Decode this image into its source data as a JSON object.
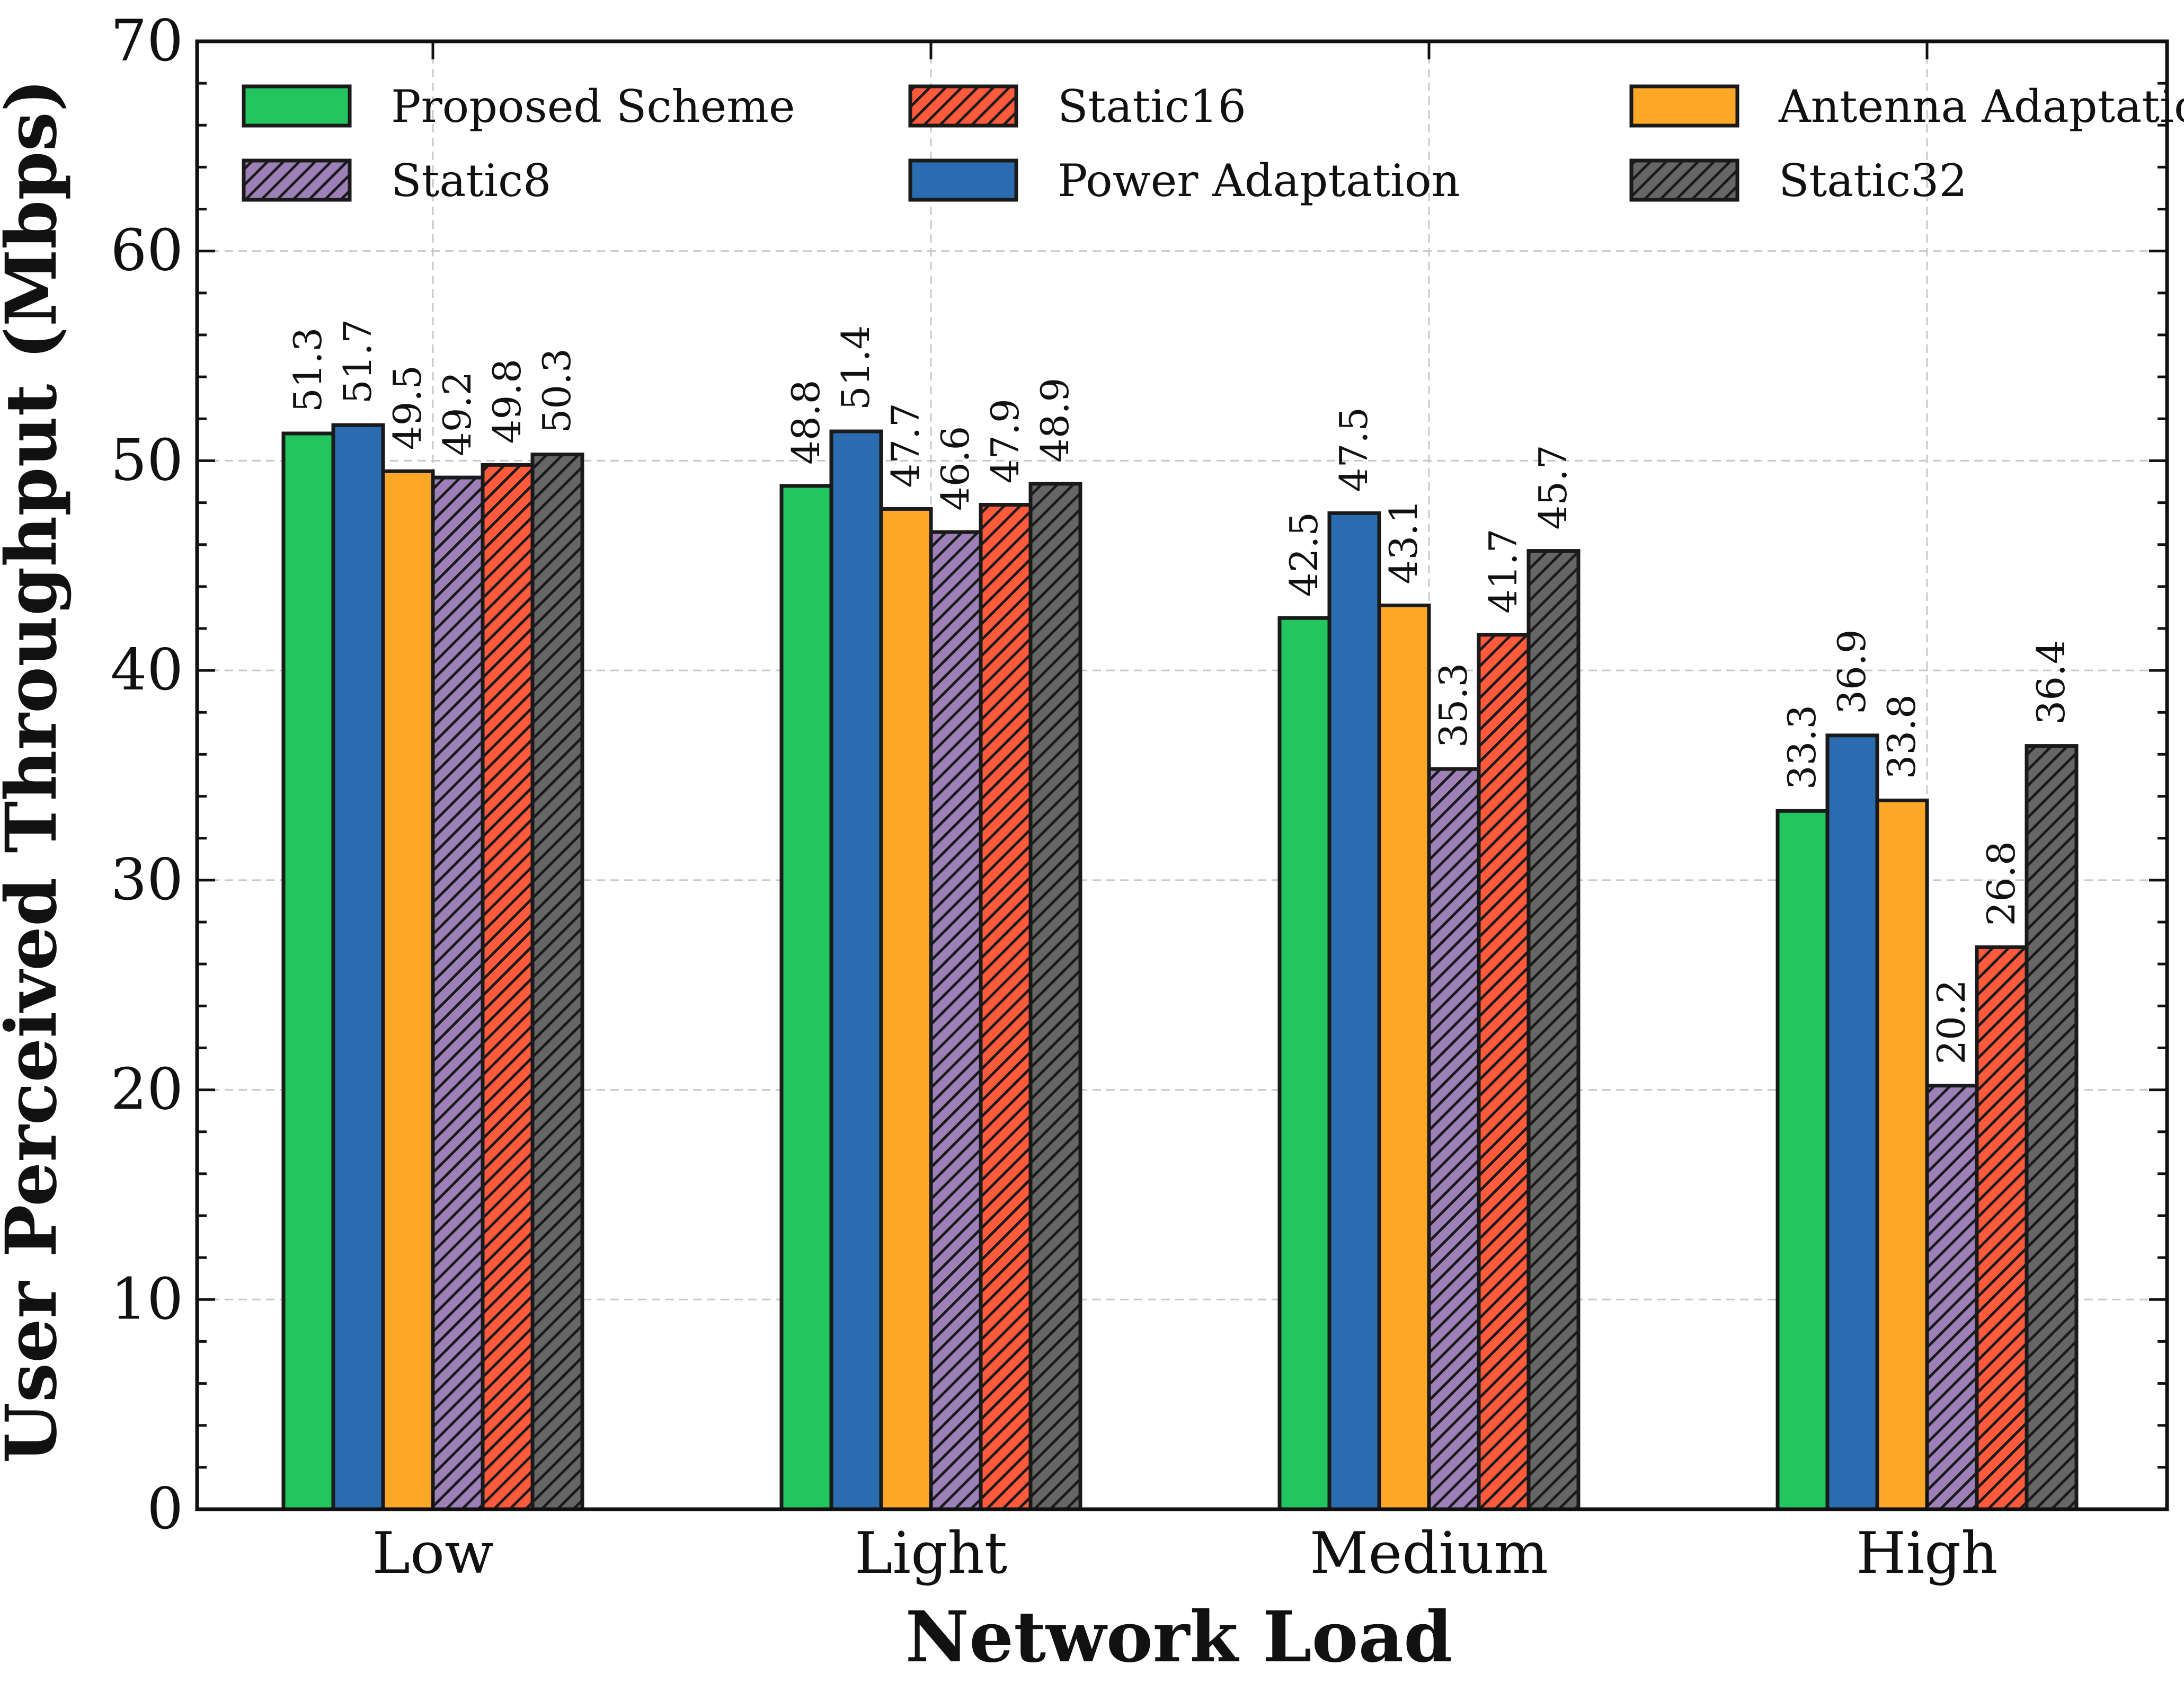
{
  "chart_data": {
    "type": "bar",
    "xlabel": "Network Load",
    "ylabel": "User Perceived Throughput (Mbps)",
    "ylim": [
      0,
      70
    ],
    "yticks": [
      0,
      10,
      20,
      30,
      40,
      50,
      60,
      70
    ],
    "grid": true,
    "legend_position": "top, 3 columns",
    "categories": [
      "Low",
      "Light",
      "Medium",
      "High"
    ],
    "series": [
      {
        "name": "Proposed Scheme",
        "color": "#22c55e",
        "hatch": false,
        "values": [
          51.3,
          48.8,
          42.5,
          33.3
        ],
        "labels": [
          "51.3",
          "48.8",
          "42.5",
          "33.3"
        ]
      },
      {
        "name": "Power Adaptation",
        "color": "#2b6cb0",
        "hatch": false,
        "values": [
          51.7,
          51.4,
          47.5,
          36.9
        ],
        "labels": [
          "51.7",
          "51.4",
          "47.5",
          "36.9"
        ]
      },
      {
        "name": "Antenna Adaptation",
        "color": "#ffa726",
        "hatch": false,
        "values": [
          49.5,
          47.7,
          43.1,
          33.8
        ],
        "labels": [
          "49.5",
          "47.7",
          "43.1",
          "33.8"
        ]
      },
      {
        "name": "Static8",
        "color": "#9d80b8",
        "hatch": true,
        "values": [
          49.2,
          46.6,
          35.3,
          20.2
        ],
        "labels": [
          "49.2",
          "46.6",
          "35.3",
          "20.2"
        ]
      },
      {
        "name": "Static16",
        "color": "#ff5a3c",
        "hatch": true,
        "values": [
          49.8,
          47.9,
          41.7,
          26.8
        ],
        "labels": [
          "49.8",
          "47.9",
          "41.7",
          "26.8"
        ]
      },
      {
        "name": "Static32",
        "color": "#666666",
        "hatch": true,
        "values": [
          50.3,
          48.9,
          45.7,
          36.4
        ],
        "labels": [
          "50.3",
          "48.9",
          "45.7",
          "36.4"
        ]
      }
    ]
  }
}
